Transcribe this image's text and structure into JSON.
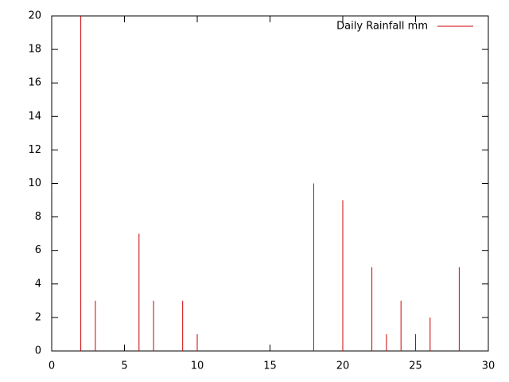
{
  "chart_data": {
    "type": "impulse",
    "x": [
      2,
      3,
      6,
      7,
      9,
      10,
      18,
      20,
      22,
      23,
      24,
      25,
      26,
      28
    ],
    "series": [
      {
        "name": "Daily Rainfall mm",
        "color": "#cc0000",
        "values": [
          20,
          3,
          7,
          3,
          3,
          1,
          10,
          9,
          5,
          1,
          3,
          1,
          2,
          5
        ]
      }
    ],
    "xlim": [
      0,
      30
    ],
    "xticks": [
      0,
      5,
      10,
      15,
      20,
      25,
      30
    ],
    "ylim": [
      0,
      20
    ],
    "yticks": [
      0,
      2,
      4,
      6,
      8,
      10,
      12,
      14,
      16,
      18,
      20
    ],
    "legend": "top-right"
  }
}
